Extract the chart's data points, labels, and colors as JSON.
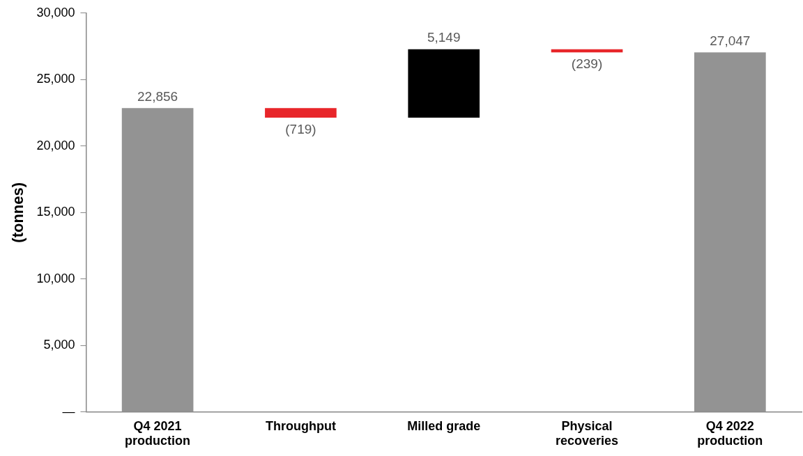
{
  "chart_data": {
    "type": "bar",
    "ylabel": "(tonnes)",
    "categories": [
      "Q4 2021 production",
      "Throughput",
      "Milled grade",
      "Physical recoveries",
      "Q4 2022 production"
    ],
    "values": [
      22856,
      -719,
      5149,
      -239,
      27047
    ],
    "base": [
      0,
      22856,
      22137,
      27286,
      0
    ],
    "colors": [
      "#939393",
      "#e8262a",
      "#000000",
      "#e8262a",
      "#939393"
    ],
    "value_labels": [
      "22,856",
      "(719)",
      "5,149",
      "(239)",
      "27,047"
    ],
    "ylim": [
      0,
      30000
    ],
    "yticks": [
      {
        "value": 0,
        "label": "—"
      },
      {
        "value": 5000,
        "label": "5,000"
      },
      {
        "value": 10000,
        "label": "10,000"
      },
      {
        "value": 15000,
        "label": "15,000"
      },
      {
        "value": 20000,
        "label": "20,000"
      },
      {
        "value": 25000,
        "label": "25,000"
      },
      {
        "value": 30000,
        "label": "30,000"
      }
    ],
    "grid": false,
    "legend": false
  }
}
